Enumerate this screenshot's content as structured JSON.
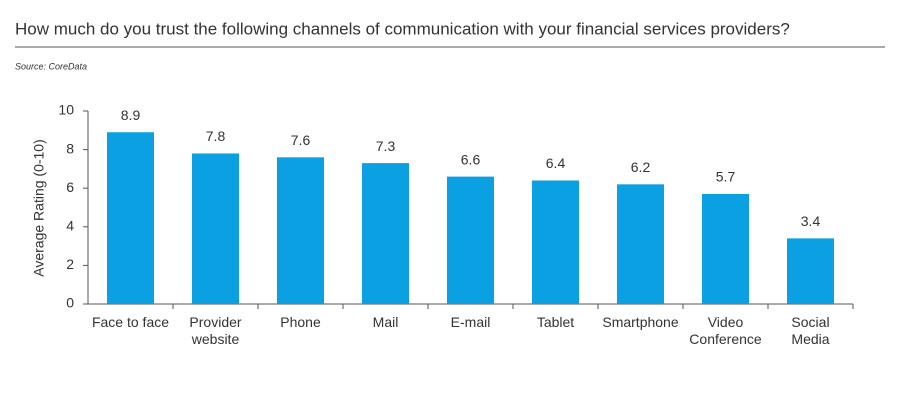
{
  "chart_data": {
    "type": "bar",
    "title": "How much do you trust the following channels of communication with your financial services providers?",
    "source": "Source: CoreData",
    "y_label": "Average Rating (0-10)",
    "categories": [
      "Face to face",
      "Provider\nwebsite",
      "Phone",
      "Mail",
      "E-mail",
      "Tablet",
      "Smartphone",
      "Video\nConference",
      "Social\nMedia"
    ],
    "values": [
      8.9,
      7.8,
      7.6,
      7.3,
      6.6,
      6.4,
      6.2,
      5.7,
      3.4
    ],
    "color": "#0aa0e2",
    "ylim": [
      0,
      10
    ],
    "yticks": [
      0,
      2,
      4,
      6,
      8,
      10
    ],
    "grid": false
  }
}
